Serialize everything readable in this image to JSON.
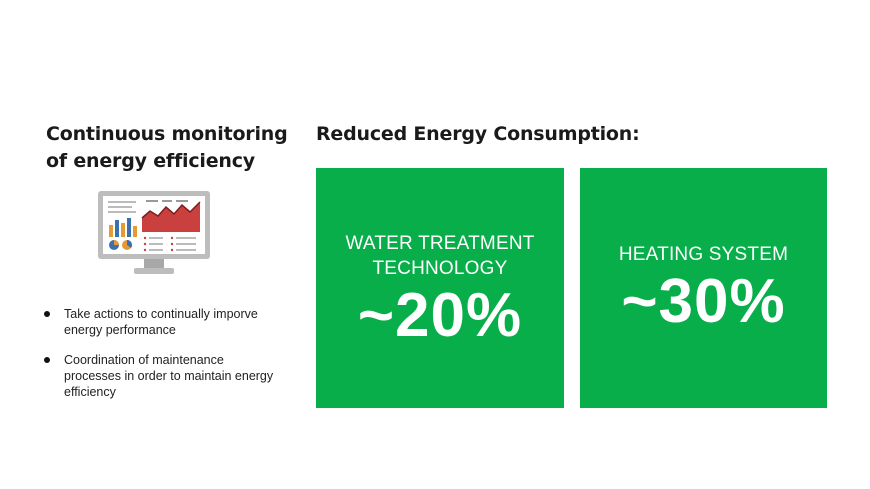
{
  "left": {
    "title": "Continuous monitoring of energy efficiency",
    "icon": "monitor-dashboard-icon",
    "bullets": [
      "Take actions to continually imporve energy performance",
      "Coordination of maintenance processes in order to maintain energy efficiency"
    ]
  },
  "right": {
    "title": "Reduced Energy Consumption:",
    "cards": [
      {
        "label": "WATER TREATMENT TECHNOLOGY",
        "value": "~20%"
      },
      {
        "label": "HEATING SYSTEM",
        "value": "~30%"
      }
    ]
  },
  "colors": {
    "card_green": "#08ae4a",
    "chart_red": "#c9403f",
    "bar_orange": "#e59a3a",
    "bar_blue": "#3a6fb0",
    "monitor_gray": "#b9b9b9"
  }
}
